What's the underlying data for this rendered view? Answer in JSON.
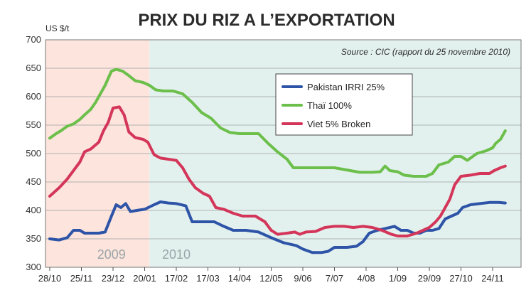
{
  "chart_data": {
    "type": "line",
    "title": "PRIX DU RIZ A L’EXPORTATION",
    "ylabel": "US $/t",
    "source": "Source : CIC (rapport du 25 novembre 2010)",
    "ylim": [
      300,
      700
    ],
    "yticks": [
      300,
      350,
      400,
      450,
      500,
      550,
      600,
      650,
      700
    ],
    "x_tick_labels": [
      "28/10",
      "25/11",
      "23/12",
      "20/01",
      "17/02",
      "17/03",
      "14/04",
      "12/05",
      "9/06",
      "7/07",
      "4/08",
      "1/09",
      "29/09",
      "27/10",
      "24/11"
    ],
    "x_range": [
      0,
      14.4
    ],
    "grid": true,
    "legend_position": "top-center",
    "periods": [
      {
        "label": "2009",
        "from": 0,
        "to": 3.15,
        "color": "#fde4dc"
      },
      {
        "label": "2010",
        "from": 3.15,
        "to": 14.4,
        "color": "#e3f1ee"
      }
    ],
    "series": [
      {
        "name": "Pakistan IRRI 25%",
        "color": "#2e54a8",
        "points": [
          [
            0,
            350
          ],
          [
            0.3,
            348
          ],
          [
            0.55,
            352
          ],
          [
            0.75,
            365
          ],
          [
            0.95,
            365
          ],
          [
            1.1,
            360
          ],
          [
            1.3,
            360
          ],
          [
            1.55,
            360
          ],
          [
            1.75,
            362
          ],
          [
            1.95,
            390
          ],
          [
            2.1,
            410
          ],
          [
            2.25,
            405
          ],
          [
            2.4,
            412
          ],
          [
            2.55,
            398
          ],
          [
            2.75,
            400
          ],
          [
            3.0,
            402
          ],
          [
            3.3,
            410
          ],
          [
            3.5,
            415
          ],
          [
            3.75,
            413
          ],
          [
            4.0,
            412
          ],
          [
            4.3,
            408
          ],
          [
            4.5,
            380
          ],
          [
            4.8,
            380
          ],
          [
            5.2,
            380
          ],
          [
            5.5,
            372
          ],
          [
            5.8,
            365
          ],
          [
            6.2,
            365
          ],
          [
            6.6,
            362
          ],
          [
            7.0,
            352
          ],
          [
            7.4,
            343
          ],
          [
            7.8,
            338
          ],
          [
            8.0,
            332
          ],
          [
            8.3,
            326
          ],
          [
            8.6,
            326
          ],
          [
            8.8,
            328
          ],
          [
            9.0,
            335
          ],
          [
            9.4,
            335
          ],
          [
            9.7,
            337
          ],
          [
            9.9,
            345
          ],
          [
            10.1,
            360
          ],
          [
            10.35,
            365
          ],
          [
            10.6,
            368
          ],
          [
            10.9,
            372
          ],
          [
            11.1,
            365
          ],
          [
            11.3,
            365
          ],
          [
            11.5,
            360
          ],
          [
            11.7,
            360
          ],
          [
            11.9,
            365
          ],
          [
            12.1,
            365
          ],
          [
            12.3,
            368
          ],
          [
            12.5,
            385
          ],
          [
            12.7,
            390
          ],
          [
            12.9,
            395
          ],
          [
            13.05,
            405
          ],
          [
            13.3,
            410
          ],
          [
            13.6,
            412
          ],
          [
            13.9,
            414
          ],
          [
            14.2,
            414
          ],
          [
            14.4,
            413
          ]
        ]
      },
      {
        "name": "Thaï 100%",
        "color": "#6bbf4a",
        "points": [
          [
            0,
            527
          ],
          [
            0.2,
            535
          ],
          [
            0.35,
            540
          ],
          [
            0.55,
            548
          ],
          [
            0.75,
            552
          ],
          [
            0.95,
            560
          ],
          [
            1.1,
            568
          ],
          [
            1.3,
            578
          ],
          [
            1.45,
            590
          ],
          [
            1.6,
            605
          ],
          [
            1.75,
            620
          ],
          [
            1.95,
            645
          ],
          [
            2.1,
            648
          ],
          [
            2.3,
            645
          ],
          [
            2.5,
            637
          ],
          [
            2.7,
            628
          ],
          [
            2.95,
            625
          ],
          [
            3.15,
            620
          ],
          [
            3.35,
            612
          ],
          [
            3.6,
            610
          ],
          [
            3.9,
            610
          ],
          [
            4.2,
            605
          ],
          [
            4.5,
            590
          ],
          [
            4.8,
            572
          ],
          [
            5.1,
            562
          ],
          [
            5.4,
            545
          ],
          [
            5.7,
            537
          ],
          [
            6.0,
            535
          ],
          [
            6.3,
            535
          ],
          [
            6.6,
            535
          ],
          [
            6.9,
            518
          ],
          [
            7.2,
            503
          ],
          [
            7.5,
            490
          ],
          [
            7.7,
            475
          ],
          [
            8.0,
            475
          ],
          [
            8.5,
            475
          ],
          [
            9.0,
            475
          ],
          [
            9.5,
            470
          ],
          [
            9.8,
            467
          ],
          [
            10.2,
            467
          ],
          [
            10.45,
            468
          ],
          [
            10.6,
            478
          ],
          [
            10.75,
            470
          ],
          [
            11.0,
            468
          ],
          [
            11.2,
            462
          ],
          [
            11.5,
            460
          ],
          [
            11.9,
            460
          ],
          [
            12.1,
            465
          ],
          [
            12.3,
            480
          ],
          [
            12.6,
            485
          ],
          [
            12.8,
            495
          ],
          [
            13.0,
            495
          ],
          [
            13.2,
            488
          ],
          [
            13.5,
            500
          ],
          [
            13.8,
            505
          ],
          [
            14.0,
            510
          ],
          [
            14.1,
            518
          ],
          [
            14.25,
            525
          ],
          [
            14.4,
            540
          ]
        ]
      },
      {
        "name": "Viet 5% Broken",
        "color": "#d4365a",
        "points": [
          [
            0,
            425
          ],
          [
            0.3,
            440
          ],
          [
            0.55,
            455
          ],
          [
            0.75,
            470
          ],
          [
            0.95,
            485
          ],
          [
            1.1,
            503
          ],
          [
            1.3,
            508
          ],
          [
            1.55,
            520
          ],
          [
            1.7,
            540
          ],
          [
            1.85,
            555
          ],
          [
            2.0,
            580
          ],
          [
            2.2,
            582
          ],
          [
            2.35,
            568
          ],
          [
            2.5,
            538
          ],
          [
            2.7,
            528
          ],
          [
            2.95,
            525
          ],
          [
            3.1,
            520
          ],
          [
            3.3,
            498
          ],
          [
            3.5,
            492
          ],
          [
            3.75,
            490
          ],
          [
            4.0,
            488
          ],
          [
            4.2,
            475
          ],
          [
            4.4,
            455
          ],
          [
            4.6,
            440
          ],
          [
            4.85,
            430
          ],
          [
            5.05,
            425
          ],
          [
            5.25,
            405
          ],
          [
            5.5,
            402
          ],
          [
            5.8,
            395
          ],
          [
            6.1,
            390
          ],
          [
            6.5,
            390
          ],
          [
            6.8,
            380
          ],
          [
            7.0,
            365
          ],
          [
            7.2,
            358
          ],
          [
            7.5,
            360
          ],
          [
            7.75,
            362
          ],
          [
            7.9,
            358
          ],
          [
            8.1,
            362
          ],
          [
            8.4,
            363
          ],
          [
            8.7,
            370
          ],
          [
            9.0,
            372
          ],
          [
            9.3,
            372
          ],
          [
            9.6,
            370
          ],
          [
            9.9,
            372
          ],
          [
            10.2,
            370
          ],
          [
            10.5,
            365
          ],
          [
            10.8,
            358
          ],
          [
            11.0,
            355
          ],
          [
            11.3,
            355
          ],
          [
            11.6,
            360
          ],
          [
            11.8,
            365
          ],
          [
            12.0,
            370
          ],
          [
            12.2,
            380
          ],
          [
            12.35,
            390
          ],
          [
            12.5,
            405
          ],
          [
            12.65,
            420
          ],
          [
            12.8,
            445
          ],
          [
            13.0,
            460
          ],
          [
            13.3,
            462
          ],
          [
            13.6,
            465
          ],
          [
            13.9,
            465
          ],
          [
            14.05,
            470
          ],
          [
            14.25,
            475
          ],
          [
            14.4,
            478
          ]
        ]
      }
    ]
  }
}
